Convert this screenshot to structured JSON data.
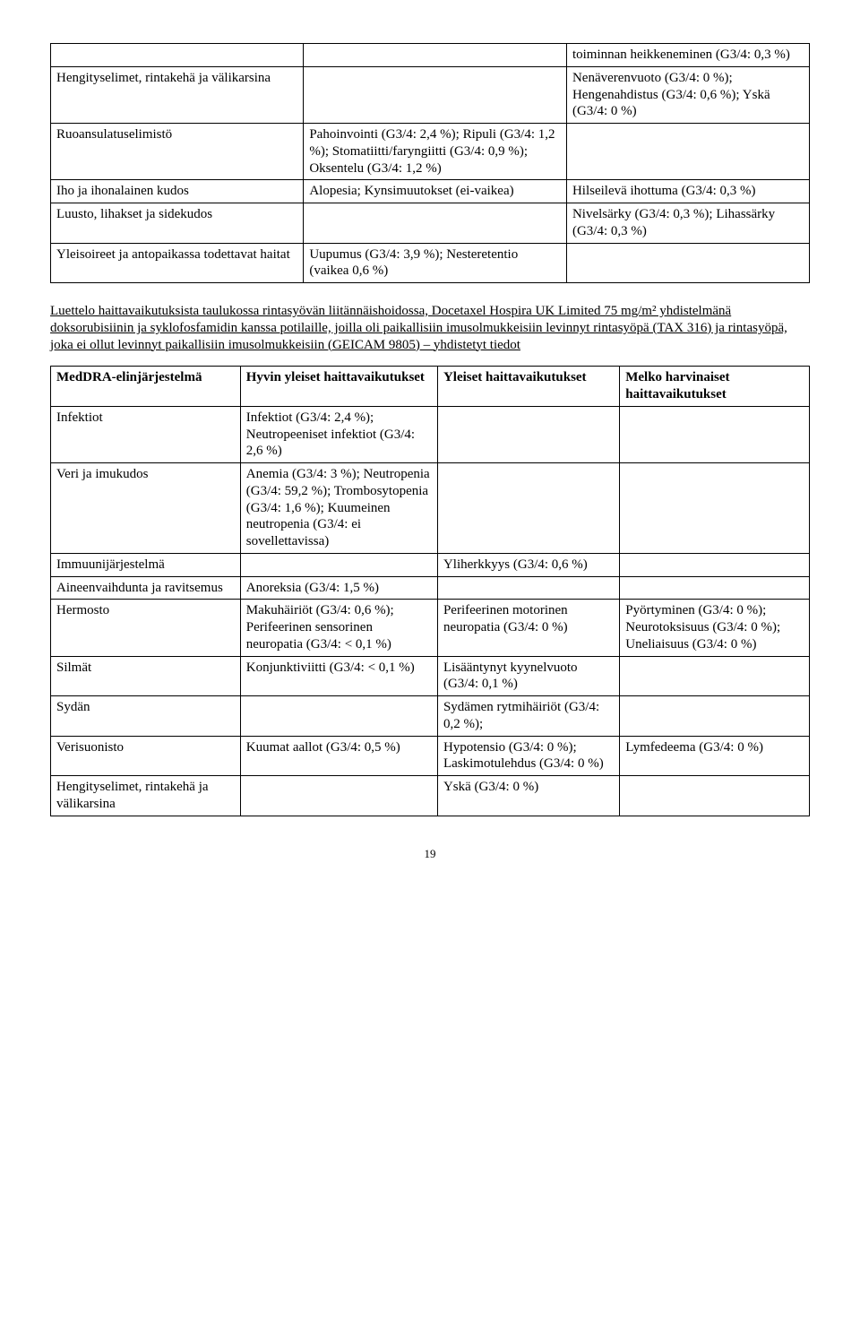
{
  "table1": {
    "rows": [
      {
        "c1": "",
        "c2": "",
        "c3": "toiminnan heikkeneminen (G3/4: 0,3 %)"
      },
      {
        "c1": "Hengityselimet, rintakehä ja välikarsina",
        "c2": "",
        "c3": "Nenäverenvuoto (G3/4: 0 %); Hengenahdistus (G3/4: 0,6 %); Yskä (G3/4: 0 %)"
      },
      {
        "c1": "Ruoansulatuselimistö",
        "c2": "Pahoinvointi (G3/4: 2,4 %); Ripuli (G3/4: 1,2 %); Stomatiitti/faryngiitti (G3/4: 0,9 %); Oksentelu (G3/4: 1,2 %)",
        "c3": ""
      },
      {
        "c1": "Iho ja ihonalainen kudos",
        "c2": "Alopesia; Kynsimuutokset (ei-vaikea)",
        "c3": "Hilseilevä ihottuma (G3/4: 0,3 %)"
      },
      {
        "c1": "Luusto, lihakset ja sidekudos",
        "c2": "",
        "c3": "Nivelsärky (G3/4: 0,3 %); Lihassärky (G3/4: 0,3 %)"
      },
      {
        "c1": "Yleisoireet ja antopaikassa todettavat haitat",
        "c2": "Uupumus (G3/4: 3,9 %); Nesteretentio (vaikea 0,6 %)",
        "c3": ""
      }
    ]
  },
  "paragraph": {
    "seg1": "Luettelo haittavaikutuksista taulukossa rintasyövän liitännäishoidossa, Docetaxel Hospira UK Limited 75 mg/m² yhdistelmänä ",
    "seg2": "doksorubisiinin ja syklofosfamidin kanssa potilaille, joilla oli paikallisiin imusolmukkeisiin levinnyt",
    "seg3": " rintasyöpä (TAX 316) ja rintasyöpä, joka ei ollut levinnyt paikallisiin imusolmukkeisiin (GEICAM 9805) – yhdistetyt tiedot"
  },
  "table2": {
    "headers": {
      "h1": "MedDRA-elinjärjestelmä",
      "h2": "Hyvin yleiset haittavaikutukset",
      "h3": "Yleiset haittavaikutukset",
      "h4": "Melko harvinaiset haittavaikutukset"
    },
    "rows": [
      {
        "c1": "Infektiot",
        "c2": "Infektiot (G3/4: 2,4 %); Neutropeeniset infektiot (G3/4: 2,6 %)",
        "c3": "",
        "c4": ""
      },
      {
        "c1": "Veri ja imukudos",
        "c2": "Anemia (G3/4: 3 %); Neutropenia (G3/4: 59,2 %); Trombosytopenia (G3/4: 1,6 %); Kuumeinen neutropenia (G3/4: ei sovellettavissa)",
        "c3": "",
        "c4": ""
      },
      {
        "c1": "Immuunijärjestelmä",
        "c2": "",
        "c3": "Yliherkkyys (G3/4: 0,6 %)",
        "c4": ""
      },
      {
        "c1": "Aineenvaihdunta ja ravitsemus",
        "c2": "Anoreksia (G3/4: 1,5 %)",
        "c3": "",
        "c4": ""
      },
      {
        "c1": "Hermosto",
        "c2": "Makuhäiriöt (G3/4: 0,6 %); Perifeerinen sensorinen neuropatia (G3/4: < 0,1 %)",
        "c3": "Perifeerinen motorinen neuropatia (G3/4: 0 %)",
        "c4": "Pyörtyminen (G3/4: 0 %); Neurotoksisuus (G3/4: 0 %); Uneliaisuus (G3/4: 0 %)"
      },
      {
        "c1": "Silmät",
        "c2": "Konjunktiviitti (G3/4: < 0,1 %)",
        "c3": "Lisääntynyt kyynelvuoto (G3/4: 0,1 %)",
        "c4": ""
      },
      {
        "c1": "Sydän",
        "c2": "",
        "c3": "Sydämen rytmihäiriöt (G3/4: 0,2 %);",
        "c4": ""
      },
      {
        "c1": "Verisuonisto",
        "c2": "Kuumat aallot (G3/4: 0,5 %)",
        "c3": "Hypotensio (G3/4: 0 %); Laskimotulehdus (G3/4: 0 %)",
        "c4": "Lymfedeema (G3/4: 0 %)"
      },
      {
        "c1": "Hengityselimet, rintakehä ja välikarsina",
        "c2": "",
        "c3": "Yskä (G3/4: 0 %)",
        "c4": ""
      }
    ]
  },
  "pageNumber": "19"
}
